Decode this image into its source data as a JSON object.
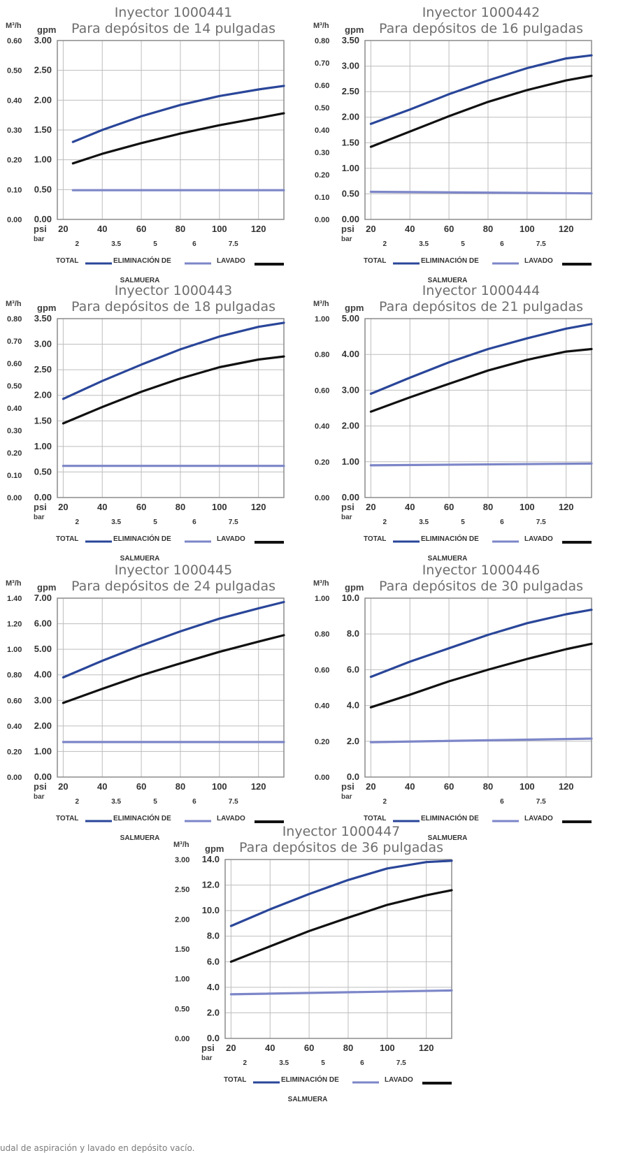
{
  "colors": {
    "total": "#2a4699",
    "salmuera": "#7c86c8",
    "lavado": "#111111",
    "grid": "#bdbdbd",
    "frame": "#8c8c8c"
  },
  "labels": {
    "m3h": "M³/h",
    "gpm": "gpm",
    "psi": "psi",
    "bar": "bar",
    "legend_total": "TOTAL",
    "legend_elim": "ELIMINACIÓN DE",
    "legend_salmuera": "SALMUERA",
    "legend_lavado": "LAVADO"
  },
  "footnote": "udal de aspiración y lavado en depósito vacío.",
  "chart_data": [
    {
      "type": "line",
      "title": "Inyector 1000441",
      "subtitle": "Para depósitos de 14 pulgadas",
      "xlabel": "psi",
      "xlabel2": "bar",
      "ylabel": "gpm",
      "ylabel2": "M³/h",
      "xlim": [
        17,
        133
      ],
      "ylim": [
        0,
        3.0
      ],
      "x_ticks": [
        "20",
        "40",
        "60",
        "80",
        "100",
        "120"
      ],
      "bar_ticks": [
        "2",
        "3.5",
        "5",
        "6",
        "7.5"
      ],
      "y_ticks": [
        "0.00",
        "0.50",
        "1.00",
        "1.50",
        "2.00",
        "2.50",
        "3.00"
      ],
      "m3h_ticks": [
        "0.00",
        "0.10",
        "0.20",
        "0.30",
        "0.40",
        "0.50",
        "0.60"
      ],
      "series": [
        {
          "name": "TOTAL",
          "x": [
            25,
            40,
            60,
            80,
            100,
            120,
            133
          ],
          "y": [
            1.3,
            1.5,
            1.73,
            1.92,
            2.07,
            2.18,
            2.24
          ]
        },
        {
          "name": "ELIMINACIÓN DE SALMUERA",
          "x": [
            25,
            133
          ],
          "y": [
            0.49,
            0.49
          ]
        },
        {
          "name": "LAVADO",
          "x": [
            25,
            40,
            60,
            80,
            100,
            120,
            133
          ],
          "y": [
            0.94,
            1.1,
            1.28,
            1.44,
            1.58,
            1.7,
            1.78
          ]
        }
      ]
    },
    {
      "type": "line",
      "title": "Inyector 1000442",
      "subtitle": "Para depósitos de 16 pulgadas",
      "xlabel": "psi",
      "xlabel2": "bar",
      "ylabel": "gpm",
      "ylabel2": "M³/h",
      "xlim": [
        17,
        133
      ],
      "ylim": [
        0,
        3.5
      ],
      "x_ticks": [
        "20",
        "40",
        "60",
        "80",
        "100",
        "120"
      ],
      "bar_ticks": [
        "2",
        "3.5",
        "5",
        "6",
        "7.5"
      ],
      "y_ticks": [
        "0.00",
        "0.50",
        "1.00",
        "1.50",
        "2.00",
        "2.50",
        "3.00",
        "3.50"
      ],
      "m3h_ticks": [
        "0.00",
        "0.10",
        "0.20",
        "0.30",
        "0.40",
        "0.50",
        "0.60",
        "0.70",
        "0.80"
      ],
      "series": [
        {
          "name": "TOTAL",
          "x": [
            20,
            40,
            60,
            80,
            100,
            120,
            133
          ],
          "y": [
            1.87,
            2.15,
            2.45,
            2.72,
            2.96,
            3.15,
            3.21
          ]
        },
        {
          "name": "ELIMINACIÓN DE SALMUERA",
          "x": [
            20,
            133
          ],
          "y": [
            0.54,
            0.51
          ]
        },
        {
          "name": "LAVADO",
          "x": [
            20,
            40,
            60,
            80,
            100,
            120,
            133
          ],
          "y": [
            1.42,
            1.72,
            2.02,
            2.3,
            2.53,
            2.72,
            2.81
          ]
        }
      ]
    },
    {
      "type": "line",
      "title": "Inyector 1000443",
      "subtitle": "Para depósitos de 18 pulgadas",
      "xlabel": "psi",
      "xlabel2": "bar",
      "ylabel": "gpm",
      "ylabel2": "M³/h",
      "xlim": [
        17,
        133
      ],
      "ylim": [
        0,
        3.5
      ],
      "x_ticks": [
        "20",
        "40",
        "60",
        "80",
        "100",
        "120"
      ],
      "bar_ticks": [
        "2",
        "3.5",
        "5",
        "6",
        "7.5"
      ],
      "y_ticks": [
        "0.00",
        "0.50",
        "1.00",
        "1.50",
        "2.00",
        "2.50",
        "3.00",
        "3.50"
      ],
      "m3h_ticks": [
        "0.00",
        "0.10",
        "0.20",
        "0.30",
        "0.40",
        "0.50",
        "0.60",
        "0.70",
        "0.80"
      ],
      "series": [
        {
          "name": "TOTAL",
          "x": [
            20,
            40,
            60,
            80,
            100,
            120,
            133
          ],
          "y": [
            1.93,
            2.28,
            2.6,
            2.9,
            3.15,
            3.34,
            3.42
          ]
        },
        {
          "name": "ELIMINACIÓN DE SALMUERA",
          "x": [
            20,
            133
          ],
          "y": [
            0.62,
            0.62
          ]
        },
        {
          "name": "LAVADO",
          "x": [
            20,
            40,
            60,
            80,
            100,
            120,
            133
          ],
          "y": [
            1.45,
            1.77,
            2.07,
            2.33,
            2.55,
            2.7,
            2.76
          ]
        }
      ]
    },
    {
      "type": "line",
      "title": "Inyector 1000444",
      "subtitle": "Para depósitos de 21 pulgadas",
      "xlabel": "psi",
      "xlabel2": "bar",
      "ylabel": "gpm",
      "ylabel2": "M³/h",
      "xlim": [
        17,
        133
      ],
      "ylim": [
        0,
        5.0
      ],
      "x_ticks": [
        "20",
        "40",
        "60",
        "80",
        "100",
        "120"
      ],
      "bar_ticks": [
        "2",
        "3.5",
        "5",
        "6",
        "7.5"
      ],
      "y_ticks": [
        "0.00",
        "1.00",
        "2.00",
        "3.00",
        "4.00",
        "5.00"
      ],
      "m3h_ticks": [
        "0.00",
        "0.20",
        "0.40",
        "0.60",
        "0.80",
        "1.00"
      ],
      "series": [
        {
          "name": "TOTAL",
          "x": [
            20,
            40,
            60,
            80,
            100,
            120,
            133
          ],
          "y": [
            2.9,
            3.35,
            3.78,
            4.15,
            4.45,
            4.72,
            4.85
          ]
        },
        {
          "name": "ELIMINACIÓN DE SALMUERA",
          "x": [
            20,
            133
          ],
          "y": [
            0.9,
            0.95
          ]
        },
        {
          "name": "LAVADO",
          "x": [
            20,
            40,
            60,
            80,
            100,
            120,
            133
          ],
          "y": [
            2.4,
            2.8,
            3.18,
            3.55,
            3.85,
            4.08,
            4.15
          ]
        }
      ]
    },
    {
      "type": "line",
      "title": "Inyector 1000445",
      "subtitle": "Para depósitos de 24 pulgadas",
      "xlabel": "psi",
      "xlabel2": "bar",
      "ylabel": "gpm",
      "ylabel2": "M³/h",
      "xlim": [
        17,
        133
      ],
      "ylim": [
        0,
        7.0
      ],
      "x_ticks": [
        "20",
        "40",
        "60",
        "80",
        "100",
        "120"
      ],
      "bar_ticks": [
        "2",
        "3.5",
        "5",
        "6",
        "7.5"
      ],
      "y_ticks": [
        "0.00",
        "1.00",
        "2.00",
        "3.00",
        "4.00",
        "5.00",
        "6.00",
        "7.00"
      ],
      "m3h_ticks": [
        "0.00",
        "0.20",
        "0.40",
        "0.60",
        "0.80",
        "1.00",
        "1.20",
        "1.40"
      ],
      "series": [
        {
          "name": "TOTAL",
          "x": [
            20,
            40,
            60,
            80,
            100,
            120,
            133
          ],
          "y": [
            3.9,
            4.55,
            5.15,
            5.7,
            6.2,
            6.6,
            6.85
          ]
        },
        {
          "name": "ELIMINACIÓN DE SALMUERA",
          "x": [
            20,
            133
          ],
          "y": [
            1.37,
            1.37
          ]
        },
        {
          "name": "LAVADO",
          "x": [
            20,
            40,
            60,
            80,
            100,
            120,
            133
          ],
          "y": [
            2.9,
            3.45,
            3.98,
            4.45,
            4.9,
            5.3,
            5.55
          ]
        }
      ]
    },
    {
      "type": "line",
      "title": "Inyector 1000446",
      "subtitle": "Para depósitos de 30 pulgadas",
      "xlabel": "psi",
      "xlabel2": "bar",
      "ylabel": "gpm",
      "ylabel2": "M³/h",
      "xlim": [
        17,
        133
      ],
      "ylim": [
        0,
        10.0
      ],
      "x_ticks": [
        "20",
        "40",
        "60",
        "80",
        "100",
        "120"
      ],
      "bar_ticks": [
        "2",
        "",
        "",
        "6",
        "7.5"
      ],
      "y_ticks": [
        "0.0",
        "2.0",
        "4.0",
        "6.0",
        "8.0",
        "10.0"
      ],
      "m3h_ticks": [
        "0.00",
        "0.20",
        "0.40",
        "0.60",
        "0.80",
        "1.00"
      ],
      "series": [
        {
          "name": "TOTAL",
          "x": [
            20,
            40,
            60,
            80,
            100,
            120,
            133
          ],
          "y": [
            5.6,
            6.45,
            7.2,
            7.95,
            8.6,
            9.1,
            9.35
          ]
        },
        {
          "name": "ELIMINACIÓN DE SALMUERA",
          "x": [
            20,
            133
          ],
          "y": [
            1.95,
            2.15
          ]
        },
        {
          "name": "LAVADO",
          "x": [
            20,
            40,
            60,
            80,
            100,
            120,
            133
          ],
          "y": [
            3.9,
            4.6,
            5.35,
            6.0,
            6.6,
            7.15,
            7.45
          ]
        }
      ]
    },
    {
      "type": "line",
      "title": "Inyector 1000447",
      "subtitle": "Para depósitos de 36 pulgadas",
      "xlabel": "psi",
      "xlabel2": "bar",
      "ylabel": "gpm",
      "ylabel2": "M³/h",
      "xlim": [
        17,
        133
      ],
      "ylim": [
        0,
        14.0
      ],
      "x_ticks": [
        "20",
        "40",
        "60",
        "80",
        "100",
        "120"
      ],
      "bar_ticks": [
        "2",
        "3.5",
        "5",
        "6",
        "7.5"
      ],
      "y_ticks": [
        "0.0",
        "2.0",
        "4.0",
        "6.0",
        "8.0",
        "10.0",
        "12.0",
        "14.0"
      ],
      "m3h_ticks": [
        "0.00",
        "0.50",
        "1.00",
        "1.50",
        "2.00",
        "2.50",
        "3.00"
      ],
      "series": [
        {
          "name": "TOTAL",
          "x": [
            20,
            40,
            60,
            80,
            100,
            120,
            133
          ],
          "y": [
            8.8,
            10.1,
            11.3,
            12.4,
            13.3,
            13.8,
            13.9
          ]
        },
        {
          "name": "ELIMINACIÓN DE SALMUERA",
          "x": [
            20,
            133
          ],
          "y": [
            3.45,
            3.75
          ]
        },
        {
          "name": "LAVADO",
          "x": [
            20,
            40,
            60,
            80,
            100,
            120,
            133
          ],
          "y": [
            6.0,
            7.2,
            8.4,
            9.45,
            10.45,
            11.2,
            11.6
          ]
        }
      ]
    }
  ]
}
